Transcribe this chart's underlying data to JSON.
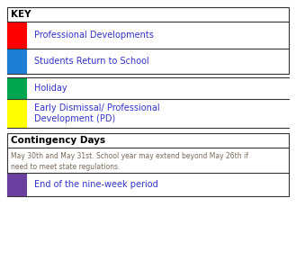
{
  "title": "KEY",
  "contingency_title": "Contingency Days",
  "items": [
    {
      "color": "#ff0000",
      "label": "Professional Developments"
    },
    {
      "color": "#1e7fd4",
      "label": "Students Return to School"
    },
    {
      "color": "#00a550",
      "label": "Holiday"
    },
    {
      "color": "#ffff00",
      "label": "Early Dismissal/ Professional\nDevelopment (PD)"
    }
  ],
  "contingency_note": "May 30th and May 31st. School year may extend beyond May 26th if\nneed to meet state regulations.",
  "nine_week_color": "#6a3fa0",
  "nine_week_label": "End of the nine-week period",
  "text_color": "#3333cc",
  "note_color": "#7a6a5a",
  "border_color": "#333333",
  "bg_color": "#ffffff",
  "key_font_color": "#000000",
  "figw": 3.29,
  "figh": 3.1,
  "dpi": 100
}
